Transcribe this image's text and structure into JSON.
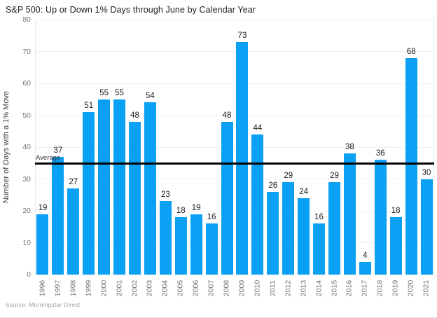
{
  "header": {
    "title": "S&P 500: Up or Down 1% Days through June by Calendar Year"
  },
  "footer": {
    "source": "Source: Morningstar Direct"
  },
  "colors": {
    "bar": "#0AA1F5",
    "average_line": "#000000",
    "grid": "#f0f0f0",
    "axis_border": "#e8e8e8",
    "tick_label": "#757575",
    "value_label": "#1a1a1a",
    "title_text": "#212121",
    "source_text": "#9ba1a6"
  },
  "chart_data": {
    "type": "bar",
    "title": "S&P 500: Up or Down 1% Days through June by Calendar Year",
    "categories": [
      "1996",
      "1997",
      "1998",
      "1999",
      "2000",
      "2001",
      "2002",
      "2003",
      "2004",
      "2005",
      "2006",
      "2007",
      "2008",
      "2009",
      "2010",
      "2011",
      "2012",
      "2013",
      "2014",
      "2015",
      "2016",
      "2017",
      "2018",
      "2019",
      "2020",
      "2021"
    ],
    "values": [
      19,
      37,
      27,
      51,
      55,
      55,
      48,
      54,
      23,
      18,
      19,
      16,
      48,
      73,
      44,
      26,
      29,
      24,
      16,
      29,
      38,
      4,
      36,
      18,
      68,
      30
    ],
    "xlabel": "",
    "ylabel": "Number of Days with a 1% Move",
    "ylim": [
      0,
      80
    ],
    "yticks": [
      0,
      10,
      20,
      30,
      40,
      50,
      60,
      70,
      80
    ],
    "grid": true,
    "legend_position": "none",
    "annotations": [
      {
        "type": "hline",
        "value": 34.8,
        "label": "Average"
      }
    ],
    "source": "Source: Morningstar Direct"
  }
}
